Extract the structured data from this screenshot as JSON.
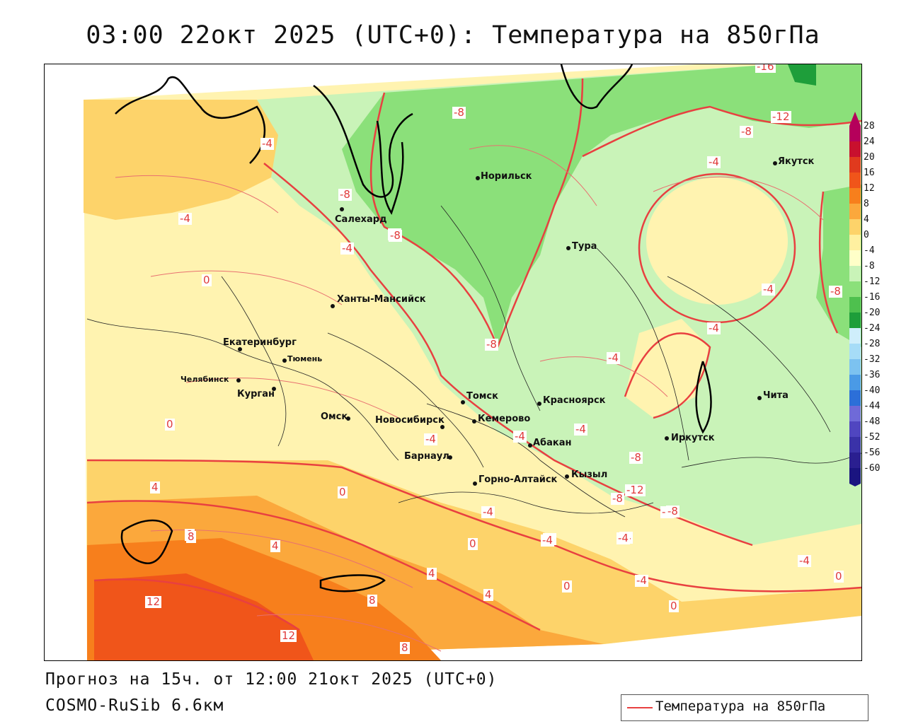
{
  "title": "03:00 22окт 2025 (UTC+0): Температура на 850гПа",
  "forecast_line": "Прогноз на 15ч. от 12:00 21окт 2025 (UTC+0)",
  "model_line": "COSMO-RuSib 6.6км",
  "legend": {
    "label": "Температура на 850гПа",
    "line_color": "#e84040"
  },
  "colorbar": {
    "labels": [
      "28",
      "24",
      "20",
      "16",
      "12",
      "8",
      "4",
      "0",
      "-4",
      "-8",
      "-12",
      "-16",
      "-20",
      "-24",
      "-28",
      "-32",
      "-36",
      "-40",
      "-44",
      "-48",
      "-52",
      "-56",
      "-60"
    ],
    "colors": [
      "#b5005b",
      "#c8102e",
      "#e03a1e",
      "#f0551a",
      "#f77f1c",
      "#fba83c",
      "#fdd36a",
      "#fff0a0",
      "#ffffc8",
      "#c9f3b8",
      "#8be07a",
      "#4ec04e",
      "#1e9e3a",
      "#cfeefb",
      "#a6dcf7",
      "#7cc2f0",
      "#4a9ae6",
      "#2c6fd8",
      "#6f6ad8",
      "#5046c0",
      "#3a32a8",
      "#2a1f90",
      "#1a1480"
    ]
  },
  "cities": [
    {
      "name": "Норильск"
    },
    {
      "name": "Якутск"
    },
    {
      "name": "Салехард"
    },
    {
      "name": "Тура"
    },
    {
      "name": "Ханты-Мансийск"
    },
    {
      "name": "Екатеринбург"
    },
    {
      "name": "Тюмень"
    },
    {
      "name": "Челябинск"
    },
    {
      "name": "Курган"
    },
    {
      "name": "Омск"
    },
    {
      "name": "Новосибирск"
    },
    {
      "name": "Томск"
    },
    {
      "name": "Кемерово"
    },
    {
      "name": "Красноярск"
    },
    {
      "name": "Абакан"
    },
    {
      "name": "Барнаул"
    },
    {
      "name": "Горно-Алтайск"
    },
    {
      "name": "Кызыл"
    },
    {
      "name": "Иркутск"
    },
    {
      "name": "Чита"
    }
  ],
  "isotherm_labels": [
    {
      "text": "-16"
    },
    {
      "text": "-12"
    },
    {
      "text": "-8"
    },
    {
      "text": "-8"
    },
    {
      "text": "-4"
    },
    {
      "text": "-8"
    },
    {
      "text": "-4"
    },
    {
      "text": "-8"
    },
    {
      "text": "-4"
    },
    {
      "text": "-4"
    },
    {
      "text": "0"
    },
    {
      "text": "-4"
    },
    {
      "text": "-8"
    },
    {
      "text": "-4"
    },
    {
      "text": "-8"
    },
    {
      "text": "-4"
    },
    {
      "text": "0"
    },
    {
      "text": "-4"
    },
    {
      "text": "-4"
    },
    {
      "text": "-4"
    },
    {
      "text": "-8"
    },
    {
      "text": "-12"
    },
    {
      "text": "-8"
    },
    {
      "text": "8"
    },
    {
      "text": "4"
    },
    {
      "text": "0"
    },
    {
      "text": "8"
    },
    {
      "text": "4"
    },
    {
      "text": "-4"
    },
    {
      "text": "-4"
    },
    {
      "text": "0"
    },
    {
      "text": "-4"
    },
    {
      "text": "4"
    },
    {
      "text": "12"
    },
    {
      "text": "12"
    },
    {
      "text": "8"
    },
    {
      "text": "4"
    },
    {
      "text": "8"
    },
    {
      "text": "0"
    },
    {
      "text": "-4"
    },
    {
      "text": "0"
    },
    {
      "text": "-4"
    },
    {
      "text": "-8"
    },
    {
      "text": "-8"
    },
    {
      "text": "-4"
    },
    {
      "text": "-4"
    },
    {
      "text": "0"
    },
    {
      "text": "-8"
    }
  ]
}
